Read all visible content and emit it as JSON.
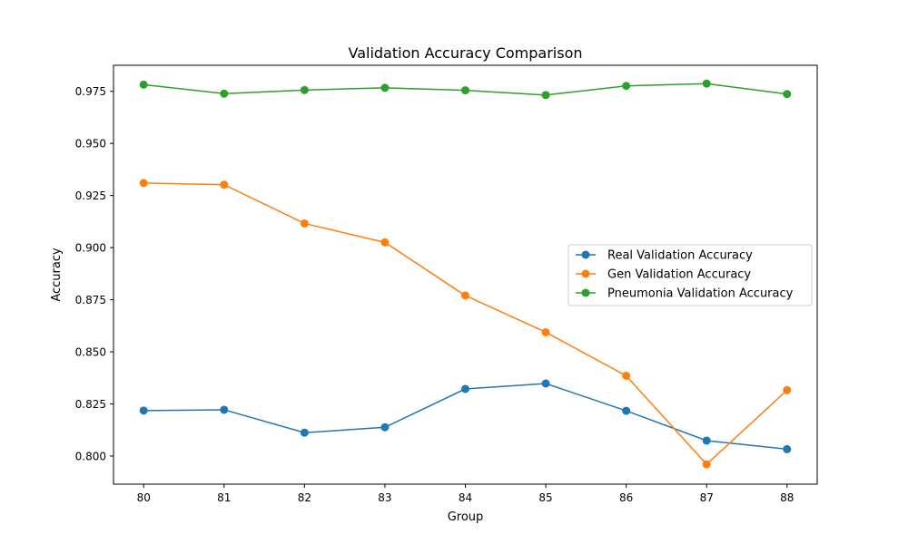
{
  "chart_data": {
    "type": "line",
    "title": "Validation Accuracy Comparison",
    "xlabel": "Group",
    "ylabel": "Accuracy",
    "x": [
      80,
      81,
      82,
      83,
      84,
      85,
      86,
      87,
      88
    ],
    "x_tick_labels": [
      "80",
      "81",
      "82",
      "83",
      "84",
      "85",
      "86",
      "87",
      "88"
    ],
    "xlim": [
      79.625,
      88.375
    ],
    "ylim": [
      0.7865,
      0.9875
    ],
    "y_ticks": [
      0.8,
      0.825,
      0.85,
      0.875,
      0.9,
      0.925,
      0.95,
      0.975
    ],
    "y_tick_labels": [
      "0.800",
      "0.825",
      "0.850",
      "0.875",
      "0.900",
      "0.925",
      "0.950",
      "0.975"
    ],
    "grid": false,
    "legend_position": "center-right",
    "series": [
      {
        "name": "Real Validation Accuracy",
        "color": "#1f77b4",
        "marker": "circle",
        "values": [
          0.8218,
          0.8222,
          0.8112,
          0.8138,
          0.8322,
          0.8348,
          0.8217,
          0.8074,
          0.8033
        ]
      },
      {
        "name": "Gen Validation Accuracy",
        "color": "#ff7f0e",
        "marker": "circle",
        "values": [
          0.931,
          0.9302,
          0.9116,
          0.9025,
          0.877,
          0.8594,
          0.8385,
          0.796,
          0.8316
        ]
      },
      {
        "name": "Pneumonia Validation Accuracy",
        "color": "#2ca02c",
        "marker": "circle",
        "values": [
          0.9782,
          0.9739,
          0.9756,
          0.9767,
          0.9755,
          0.9732,
          0.9776,
          0.9787,
          0.9737
        ]
      }
    ]
  }
}
